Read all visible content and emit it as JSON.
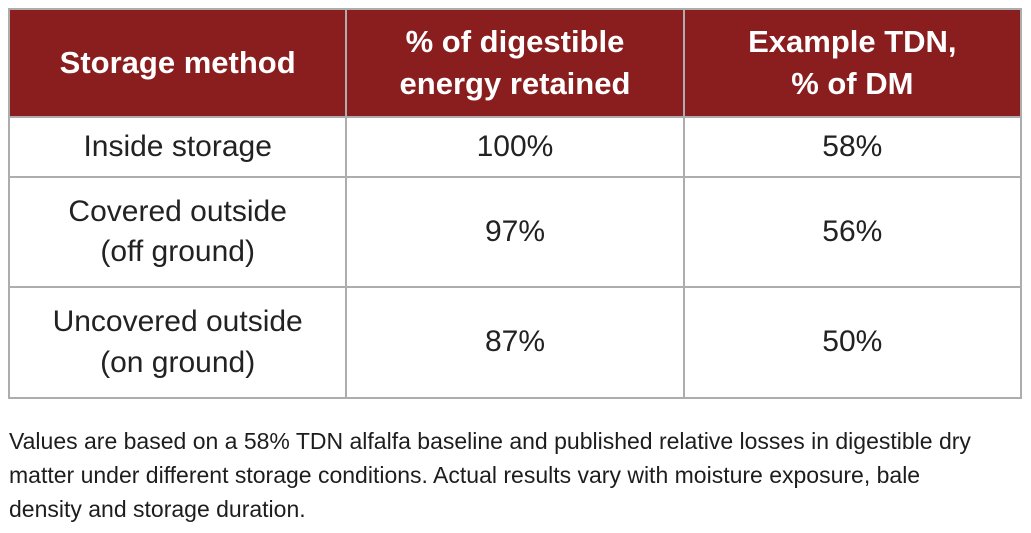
{
  "table": {
    "header_bg_color": "#8a1e1e",
    "header_text_color": "#ffffff",
    "border_color": "#adadad",
    "columns": [
      "Storage method",
      "% of digestible\nenergy retained",
      "Example TDN,\n% of DM"
    ],
    "rows": [
      {
        "method": "Inside storage",
        "energy_retained": "100%",
        "tdn": "58%"
      },
      {
        "method": "Covered outside\n(off ground)",
        "energy_retained": "97%",
        "tdn": "56%"
      },
      {
        "method": "Uncovered outside\n(on ground)",
        "energy_retained": "87%",
        "tdn": "50%"
      }
    ]
  },
  "footnote": {
    "text": "Values are based on a 58% TDN alfalfa baseline and published relative losses in digestible dry\nmatter under different storage conditions. Actual results vary with moisture exposure, bale\ndensity and storage duration."
  }
}
